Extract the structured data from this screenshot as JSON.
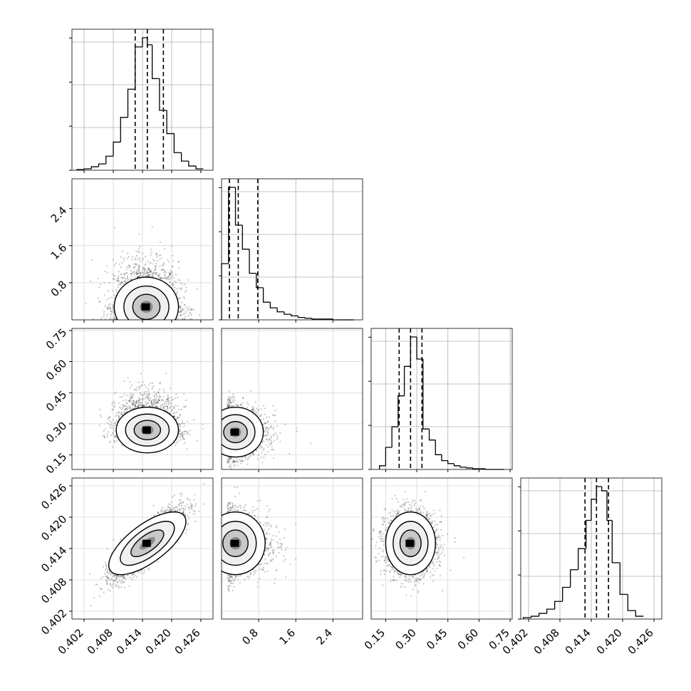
{
  "chart_data": {
    "type": "corner",
    "description_units": "data units",
    "parameters": [
      {
        "index": 0,
        "range": [
          0.3995,
          0.4285
        ],
        "ticks": [
          "0.402",
          "0.408",
          "0.414",
          "0.420",
          "0.426"
        ],
        "tick_values": [
          0.402,
          0.408,
          0.414,
          0.42,
          0.426
        ],
        "quantiles": [
          0.4125,
          0.415,
          0.4183
        ]
      },
      {
        "index": 1,
        "range": [
          0.0,
          3.04
        ],
        "ticks": [
          "0.8",
          "1.6",
          "2.4"
        ],
        "tick_values": [
          0.8,
          1.6,
          2.4
        ],
        "quantiles": [
          0.17,
          0.36,
          0.78
        ]
      },
      {
        "index": 2,
        "range": [
          0.08,
          0.76
        ],
        "ticks": [
          "0.15",
          "0.30",
          "0.45",
          "0.60",
          "0.75"
        ],
        "tick_values": [
          0.15,
          0.3,
          0.45,
          0.6,
          0.75
        ],
        "quantiles": [
          0.215,
          0.27,
          0.325
        ]
      },
      {
        "index": 3,
        "range": [
          0.4005,
          0.4275
        ],
        "ticks": [
          "0.402",
          "0.408",
          "0.414",
          "0.420",
          "0.426"
        ],
        "tick_values": [
          0.402,
          0.408,
          0.414,
          0.42,
          0.426
        ],
        "quantiles": [
          0.4128,
          0.415,
          0.4173
        ]
      }
    ],
    "histograms": [
      {
        "param": 0,
        "bin_edges": [
          0.4005,
          0.402,
          0.4035,
          0.405,
          0.4065,
          0.408,
          0.4095,
          0.411,
          0.4125,
          0.414,
          0.415,
          0.416,
          0.4175,
          0.419,
          0.4205,
          0.422,
          0.4235,
          0.425,
          0.4265
        ],
        "counts": [
          1,
          2,
          5,
          9,
          20,
          40,
          75,
          115,
          175,
          188,
          178,
          130,
          85,
          52,
          25,
          13,
          6,
          2
        ]
      },
      {
        "param": 1,
        "bin_edges": [
          0.0,
          0.15,
          0.3,
          0.45,
          0.6,
          0.75,
          0.9,
          1.05,
          1.2,
          1.35,
          1.5,
          1.65,
          1.8,
          1.95,
          2.1,
          2.25,
          2.4,
          2.55,
          2.7,
          2.85
        ],
        "counts": [
          70,
          165,
          118,
          88,
          58,
          40,
          22,
          15,
          10,
          7,
          5,
          3,
          2,
          1,
          1,
          1,
          0,
          0,
          0
        ]
      },
      {
        "param": 2,
        "bin_edges": [
          0.12,
          0.15,
          0.18,
          0.21,
          0.24,
          0.27,
          0.3,
          0.33,
          0.36,
          0.39,
          0.42,
          0.45,
          0.48,
          0.51,
          0.54,
          0.57,
          0.6,
          0.63,
          0.66,
          0.69,
          0.72
        ],
        "counts": [
          5,
          30,
          58,
          100,
          140,
          180,
          150,
          55,
          40,
          20,
          12,
          8,
          5,
          3,
          2,
          1,
          1,
          0,
          0,
          0
        ]
      },
      {
        "param": 3,
        "bin_edges": [
          0.401,
          0.4025,
          0.404,
          0.4055,
          0.407,
          0.4085,
          0.41,
          0.4115,
          0.413,
          0.414,
          0.415,
          0.416,
          0.417,
          0.418,
          0.4195,
          0.421,
          0.4225,
          0.424
        ],
        "counts": [
          2,
          4,
          8,
          14,
          25,
          45,
          70,
          100,
          140,
          170,
          188,
          182,
          140,
          80,
          35,
          12,
          4
        ]
      }
    ],
    "scatter_panels": [
      {
        "x_param": 0,
        "y_param": 1,
        "center": [
          0.4148,
          0.28
        ],
        "spread": [
          0.0033,
          0.32
        ],
        "skew_y": true
      },
      {
        "x_param": 0,
        "y_param": 2,
        "center": [
          0.415,
          0.27
        ],
        "spread": [
          0.0032,
          0.055
        ],
        "skew_y": true
      },
      {
        "x_param": 0,
        "y_param": 3,
        "center": [
          0.415,
          0.415
        ],
        "spread": [
          0.0035,
          0.0033
        ],
        "correlation": 0.85
      },
      {
        "x_param": 1,
        "y_param": 2,
        "center": [
          0.3,
          0.26
        ],
        "spread": [
          0.3,
          0.06
        ],
        "skew_x": true
      },
      {
        "x_param": 1,
        "y_param": 3,
        "center": [
          0.3,
          0.415
        ],
        "spread": [
          0.32,
          0.003
        ],
        "skew_x": true
      },
      {
        "x_param": 2,
        "y_param": 3,
        "center": [
          0.27,
          0.415
        ],
        "spread": [
          0.06,
          0.003
        ]
      }
    ],
    "grid": true,
    "legend": "none"
  }
}
